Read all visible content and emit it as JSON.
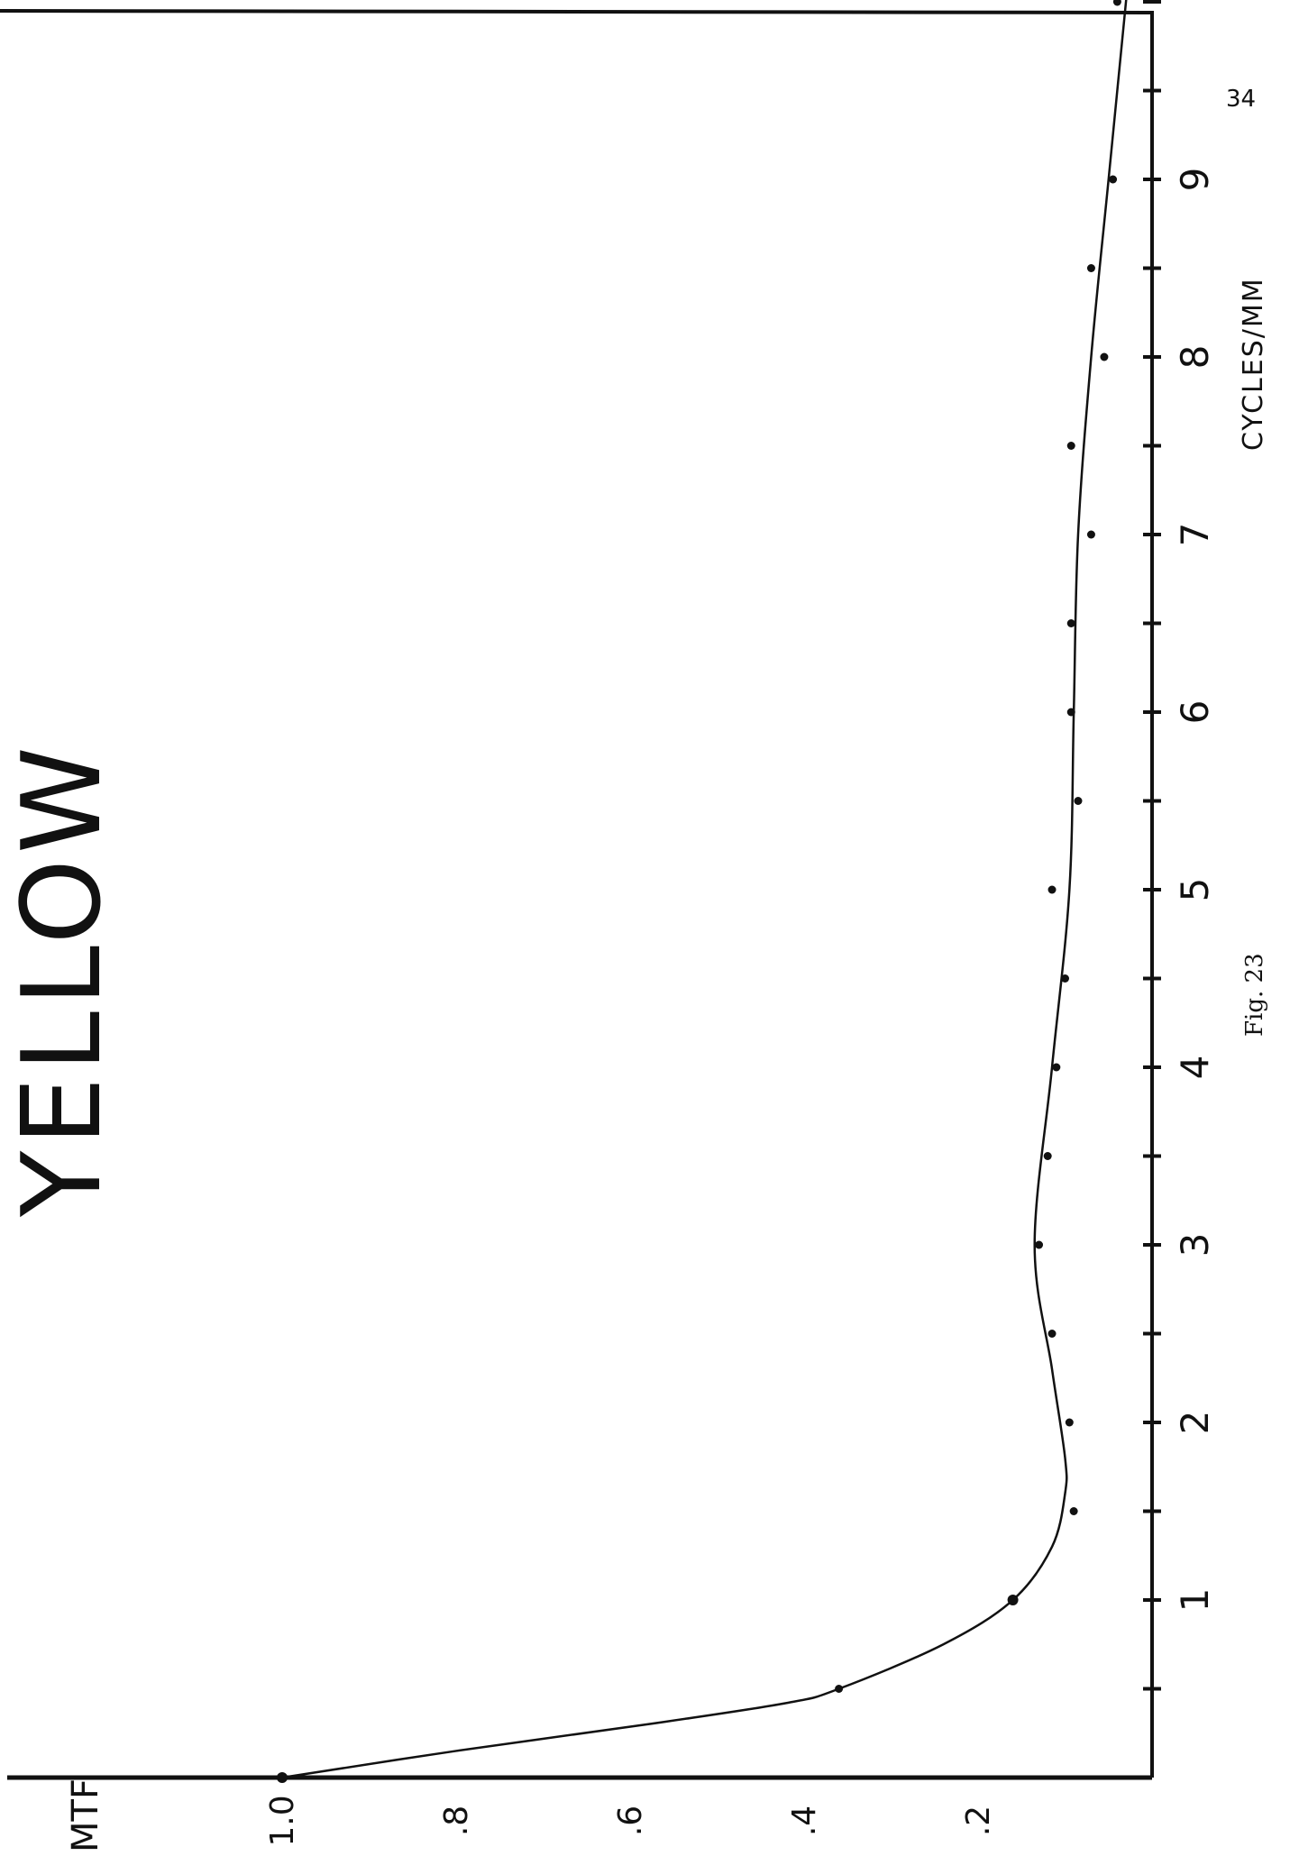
{
  "page_number": "34",
  "chart_data": {
    "type": "line",
    "title": "YELLOW",
    "caption": "Fig. 23",
    "xlabel": "CYCLES/MM",
    "ylabel": "MTF",
    "x_ticks": [
      "1",
      "2",
      "3",
      "4",
      "5",
      "6",
      "7",
      "8",
      "9"
    ],
    "y_ticks": [
      "1.0",
      ".8",
      ".6",
      ".4",
      ".2"
    ],
    "xlim": [
      0,
      10.5
    ],
    "ylim": [
      0,
      1.0
    ],
    "orientation": "rotated 90° counter-clockwise on page",
    "points": [
      {
        "x": 0.0,
        "y": 1.0
      },
      {
        "x": 0.5,
        "y": 0.36
      },
      {
        "x": 1.0,
        "y": 0.16
      },
      {
        "x": 1.5,
        "y": 0.09
      },
      {
        "x": 2.0,
        "y": 0.095
      },
      {
        "x": 2.5,
        "y": 0.115
      },
      {
        "x": 3.0,
        "y": 0.13
      },
      {
        "x": 3.5,
        "y": 0.12
      },
      {
        "x": 4.0,
        "y": 0.11
      },
      {
        "x": 4.5,
        "y": 0.1
      },
      {
        "x": 5.0,
        "y": 0.115
      },
      {
        "x": 5.5,
        "y": 0.085
      },
      {
        "x": 6.0,
        "y": 0.093
      },
      {
        "x": 6.5,
        "y": 0.093
      },
      {
        "x": 7.0,
        "y": 0.07
      },
      {
        "x": 7.5,
        "y": 0.093
      },
      {
        "x": 8.0,
        "y": 0.055
      },
      {
        "x": 8.5,
        "y": 0.07
      },
      {
        "x": 9.0,
        "y": 0.045
      },
      {
        "x": 10.0,
        "y": 0.04
      }
    ],
    "curve": [
      {
        "x": 0.0,
        "y": 1.0
      },
      {
        "x": 0.15,
        "y": 0.8
      },
      {
        "x": 0.3,
        "y": 0.58
      },
      {
        "x": 0.42,
        "y": 0.42
      },
      {
        "x": 0.5,
        "y": 0.36
      },
      {
        "x": 0.75,
        "y": 0.24
      },
      {
        "x": 1.0,
        "y": 0.16
      },
      {
        "x": 1.3,
        "y": 0.115
      },
      {
        "x": 1.6,
        "y": 0.1
      },
      {
        "x": 1.8,
        "y": 0.1
      },
      {
        "x": 2.3,
        "y": 0.115
      },
      {
        "x": 3.0,
        "y": 0.135
      },
      {
        "x": 4.0,
        "y": 0.115
      },
      {
        "x": 5.0,
        "y": 0.095
      },
      {
        "x": 6.0,
        "y": 0.09
      },
      {
        "x": 7.0,
        "y": 0.085
      },
      {
        "x": 8.0,
        "y": 0.07
      },
      {
        "x": 9.0,
        "y": 0.05
      },
      {
        "x": 10.0,
        "y": 0.03
      },
      {
        "x": 10.5,
        "y": 0.02
      }
    ]
  }
}
